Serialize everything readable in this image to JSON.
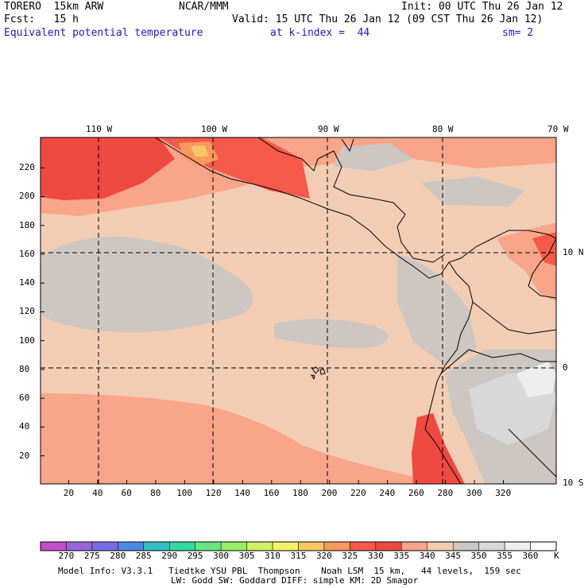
{
  "header": {
    "model": "TORERO  15km ARW",
    "center": "NCAR/MMM",
    "init": "Init: 00 UTC Thu 26 Jan 12",
    "fcst": "Fcst:   15 h",
    "valid": "Valid: 15 UTC Thu 26 Jan 12 (09 CST Thu 26 Jan 12)",
    "field": "Equivalent potential temperature",
    "level": "at k-index =  44",
    "smooth": "sm= 2"
  },
  "map": {
    "lon_labels": [
      "110 W",
      "100 W",
      "90 W",
      "80 W",
      "70 W"
    ],
    "lat_labels": [
      "10 N",
      "0",
      "10 S"
    ],
    "y_ticks": [
      "220",
      "200",
      "180",
      "160",
      "140",
      "120",
      "100",
      "80",
      "60",
      "40",
      "20"
    ],
    "x_ticks": [
      "20",
      "40",
      "60",
      "80",
      "100",
      "120",
      "140",
      "160",
      "180",
      "200",
      "220",
      "240",
      "260",
      "280",
      "300",
      "320"
    ]
  },
  "colorbar": {
    "labels": [
      "270",
      "275",
      "280",
      "285",
      "290",
      "295",
      "300",
      "305",
      "310",
      "315",
      "320",
      "325",
      "330",
      "335",
      "340",
      "345",
      "350",
      "355",
      "360"
    ],
    "unit": "K",
    "colors": [
      "#c64dc6",
      "#9966d9",
      "#7a6be6",
      "#4d8ae6",
      "#33bfbf",
      "#33d99e",
      "#66e680",
      "#99ee66",
      "#ccf266",
      "#f2f266",
      "#f7c766",
      "#f99a5c",
      "#f55a4a",
      "#ee4a42",
      "#f9a58a",
      "#f2cdb4",
      "#cdc6c1",
      "#d8d8d8",
      "#eeeeee",
      "#ffffff"
    ]
  },
  "footer": {
    "line1": "Model Info: V3.3.1   Tiedtke YSU PBL  Thompson    Noah LSM  15 km,   44 levels,  159 sec",
    "line2": "LW: Godd SW: Goddard DIFF: simple KM: 2D Smagor"
  }
}
